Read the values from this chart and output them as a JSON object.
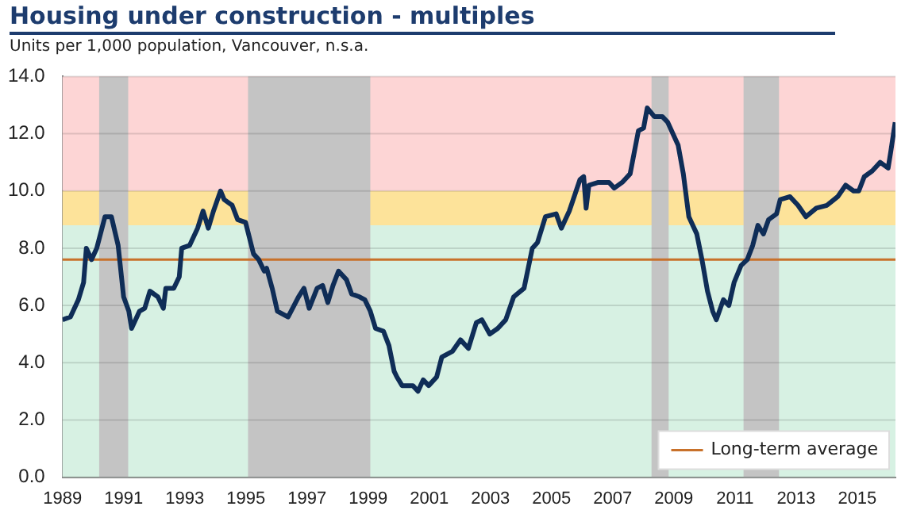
{
  "chart_data": {
    "type": "line",
    "title": "Housing under construction - multiples",
    "subtitle": "Units per 1,000 population, Vancouver, n.s.a.",
    "xlim": [
      1989,
      2016.25
    ],
    "xticks": [
      1989,
      1991,
      1993,
      1995,
      1997,
      1999,
      2001,
      2003,
      2005,
      2007,
      2009,
      2011,
      2013,
      2015
    ],
    "ylim": [
      0,
      14
    ],
    "yticks": [
      {
        "value": 0,
        "label": "0.0"
      },
      {
        "value": 2,
        "label": "2.0"
      },
      {
        "value": 4,
        "label": "4.0"
      },
      {
        "value": 6,
        "label": "6.0"
      },
      {
        "value": 8,
        "label": "8.0"
      },
      {
        "value": 10,
        "label": "10.0"
      },
      {
        "value": 12,
        "label": "12.0"
      },
      {
        "value": 14,
        "label": "14.0"
      }
    ],
    "grid": "y",
    "legend": "bottom right",
    "marker": "none",
    "line_style": "solid",
    "series": [
      {
        "color": "#0f2d57",
        "x": [
          1989.0,
          1989.26,
          1989.52,
          1989.69,
          1989.78,
          1989.95,
          1990.12,
          1990.39,
          1990.6,
          1990.82,
          1991.0,
          1991.17,
          1991.26,
          1991.52,
          1991.69,
          1991.86,
          1992.12,
          1992.3,
          1992.38,
          1992.64,
          1992.82,
          1992.9,
          1993.16,
          1993.42,
          1993.6,
          1993.77,
          1993.94,
          1994.17,
          1994.29,
          1994.55,
          1994.73,
          1994.99,
          1995.25,
          1995.42,
          1995.6,
          1995.68,
          1995.86,
          1996.03,
          1996.38,
          1996.72,
          1996.9,
          1997.07,
          1997.33,
          1997.51,
          1997.68,
          1997.85,
          1998.03,
          1998.29,
          1998.46,
          1998.72,
          1998.89,
          1999.07,
          1999.24,
          1999.5,
          1999.68,
          1999.85,
          1999.94,
          2000.11,
          2000.46,
          2000.63,
          2000.8,
          2000.98,
          2001.24,
          2001.41,
          2001.76,
          2002.02,
          2002.28,
          2002.54,
          2002.72,
          2002.98,
          2003.24,
          2003.5,
          2003.76,
          2004.1,
          2004.37,
          2004.54,
          2004.8,
          2005.15,
          2005.32,
          2005.58,
          2005.93,
          2006.05,
          2006.13,
          2006.22,
          2006.53,
          2006.88,
          2007.05,
          2007.31,
          2007.57,
          2007.84,
          2008.01,
          2008.13,
          2008.36,
          2008.62,
          2008.8,
          2009.14,
          2009.31,
          2009.49,
          2009.75,
          2009.92,
          2010.1,
          2010.27,
          2010.39,
          2010.62,
          2010.8,
          2010.97,
          2011.2,
          2011.4,
          2011.58,
          2011.75,
          2011.93,
          2012.1,
          2012.36,
          2012.48,
          2012.8,
          2013.06,
          2013.32,
          2013.66,
          2014.01,
          2014.36,
          2014.62,
          2014.88,
          2015.05,
          2015.23,
          2015.49,
          2015.75,
          2016.01,
          2016.1,
          2016.24
        ],
        "values": [
          5.5,
          5.6,
          6.2,
          6.8,
          8.0,
          7.6,
          8.0,
          9.1,
          9.1,
          8.1,
          6.3,
          5.8,
          5.2,
          5.8,
          5.9,
          6.5,
          6.3,
          5.9,
          6.6,
          6.6,
          7.0,
          8.0,
          8.1,
          8.7,
          9.3,
          8.7,
          9.3,
          10.0,
          9.7,
          9.5,
          9.0,
          8.9,
          7.8,
          7.6,
          7.2,
          7.3,
          6.6,
          5.8,
          5.6,
          6.3,
          6.6,
          5.9,
          6.6,
          6.7,
          6.1,
          6.7,
          7.2,
          6.9,
          6.4,
          6.3,
          6.2,
          5.8,
          5.2,
          5.1,
          4.6,
          3.7,
          3.5,
          3.2,
          3.2,
          3.0,
          3.4,
          3.2,
          3.5,
          4.2,
          4.4,
          4.8,
          4.5,
          5.4,
          5.5,
          5.0,
          5.2,
          5.5,
          6.3,
          6.6,
          8.0,
          8.2,
          9.1,
          9.2,
          8.7,
          9.3,
          10.4,
          10.5,
          9.4,
          10.2,
          10.3,
          10.3,
          10.1,
          10.3,
          10.6,
          12.1,
          12.2,
          12.9,
          12.6,
          12.6,
          12.4,
          11.6,
          10.6,
          9.1,
          8.5,
          7.6,
          6.5,
          5.8,
          5.5,
          6.2,
          6.0,
          6.8,
          7.4,
          7.6,
          8.1,
          8.8,
          8.5,
          9.0,
          9.2,
          9.7,
          9.8,
          9.5,
          9.1,
          9.4,
          9.5,
          9.8,
          10.2,
          10.0,
          10.0,
          10.5,
          10.7,
          11.0,
          10.8,
          11.4,
          12.4
        ]
      }
    ],
    "ref_lines": [
      {
        "axis": "y",
        "value": 7.6,
        "label": "Long-term average",
        "color": "#c8712a"
      }
    ],
    "bands": [
      {
        "axis": "y",
        "from": 10,
        "to": 14,
        "color": "#fdd5d5"
      },
      {
        "axis": "y",
        "from": 8.8,
        "to": 10,
        "color": "#fde39a"
      },
      {
        "axis": "y",
        "from": 0,
        "to": 8.8,
        "color": "#d7f1e3"
      },
      {
        "axis": "x",
        "from": 1990.2,
        "to": 1991.15,
        "color": "#c4c4c4"
      },
      {
        "axis": "x",
        "from": 1995.07,
        "to": 1999.07,
        "color": "#c4c4c4"
      },
      {
        "axis": "x",
        "from": 2008.27,
        "to": 2008.83,
        "color": "#c4c4c4"
      },
      {
        "axis": "x",
        "from": 2011.28,
        "to": 2012.44,
        "color": "#c4c4c4"
      }
    ]
  }
}
